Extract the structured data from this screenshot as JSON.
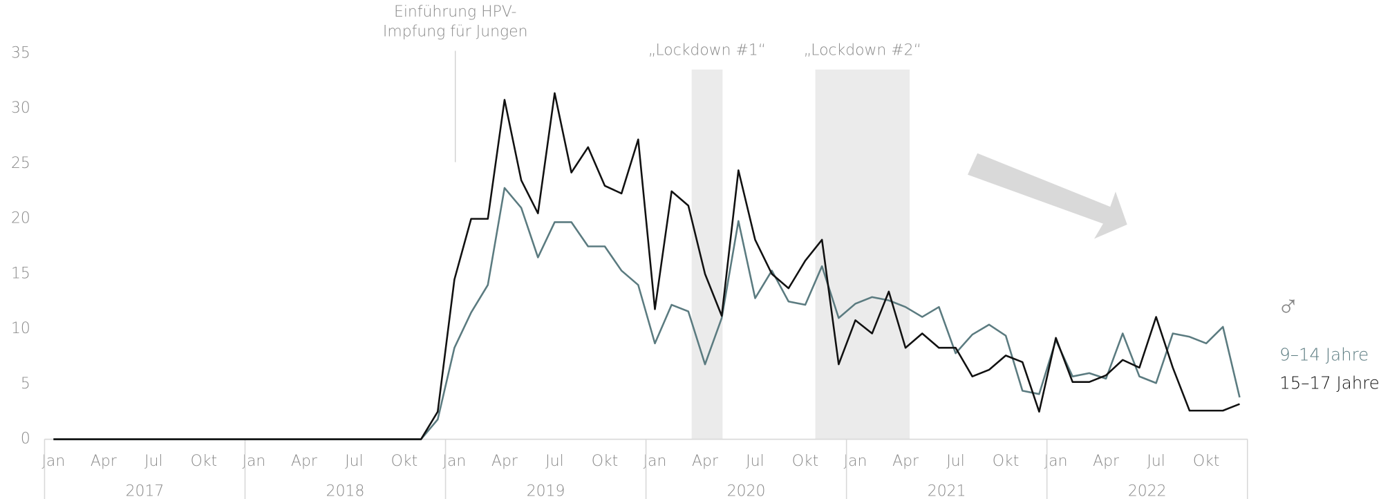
{
  "chart_data": {
    "type": "line",
    "categories": [
      "Jan",
      null,
      null,
      "Apr",
      null,
      null,
      "Jul",
      null,
      null,
      "Okt",
      null,
      null,
      "Jan",
      null,
      null,
      "Apr",
      null,
      null,
      "Jul",
      null,
      null,
      "Okt",
      null,
      null,
      "Jan",
      null,
      null,
      "Apr",
      null,
      null,
      "Jul",
      null,
      null,
      "Okt",
      null,
      null,
      "Jan",
      null,
      null,
      "Apr",
      null,
      null,
      "Jul",
      null,
      null,
      "Okt",
      null,
      null,
      "Jan",
      null,
      null,
      "Apr",
      null,
      null,
      "Jul",
      null,
      null,
      "Okt",
      null,
      null,
      "Jan",
      null,
      null,
      "Apr",
      null,
      null,
      "Jul",
      null,
      null,
      "Okt",
      null,
      null
    ],
    "years": [
      "2017",
      "2018",
      "2019",
      "2020",
      "2021",
      "2022"
    ],
    "ylim": [
      0,
      35
    ],
    "yticks": [
      0,
      5,
      10,
      15,
      20,
      25,
      30,
      35
    ],
    "legend_symbol": "♂",
    "series": [
      {
        "name": "9–14 Jahre",
        "color": "#5b7b80",
        "values": [
          0,
          0,
          0,
          0,
          0,
          0,
          0,
          0,
          0,
          0,
          0,
          0,
          0,
          0,
          0,
          0,
          0,
          0,
          0,
          0,
          0,
          0,
          0,
          1.8,
          8.3,
          11.5,
          14,
          22.8,
          21,
          16.5,
          19.7,
          19.7,
          17.5,
          17.5,
          15.3,
          14,
          8.7,
          12.2,
          11.6,
          6.8,
          11,
          19.8,
          12.8,
          15.3,
          12.5,
          12.2,
          15.7,
          11,
          12.3,
          12.9,
          12.6,
          12,
          11.1,
          12,
          7.8,
          9.5,
          10.4,
          9.4,
          4.4,
          4.1,
          9,
          5.7,
          6,
          5.5,
          9.6,
          5.7,
          5.1,
          9.6,
          9.3,
          8.7,
          10.2,
          3.8
        ]
      },
      {
        "name": "15–17 Jahre",
        "color": "#111111",
        "values": [
          0,
          0,
          0,
          0,
          0,
          0,
          0,
          0,
          0,
          0,
          0,
          0,
          0,
          0,
          0,
          0,
          0,
          0,
          0,
          0,
          0,
          0,
          0,
          2.5,
          14.5,
          20,
          20,
          30.8,
          23.5,
          20.5,
          31.4,
          24.2,
          26.5,
          23,
          22.3,
          27.2,
          11.8,
          22.5,
          21.2,
          15,
          11.2,
          24.4,
          18.1,
          15,
          13.7,
          16.2,
          18.1,
          6.8,
          10.8,
          9.6,
          13.4,
          8.3,
          9.6,
          8.3,
          8.3,
          5.7,
          6.3,
          7.6,
          7,
          2.5,
          9.2,
          5.2,
          5.2,
          5.8,
          7.2,
          6.5,
          11.1,
          6.5,
          2.6,
          2.6,
          2.6,
          3.2
        ]
      }
    ],
    "shaded_regions": [
      {
        "label": "„Lockdown #1“",
        "start": 38.2,
        "end": 40.05
      },
      {
        "label": "„Lockdown #2“",
        "start": 45.6,
        "end": 51.25
      }
    ],
    "annotation": {
      "lines": [
        "Einführung HPV-",
        "Impfung für Jungen"
      ],
      "at": 24
    }
  }
}
